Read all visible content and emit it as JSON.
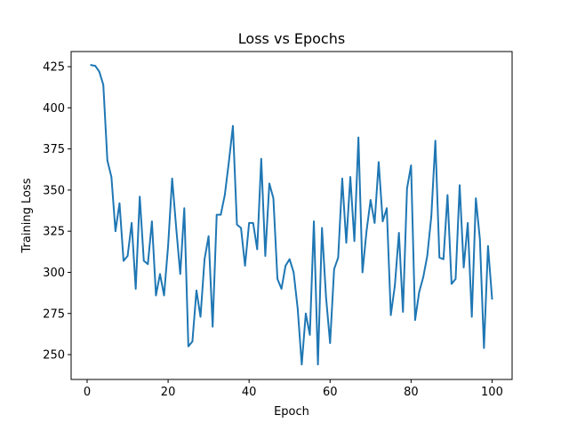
{
  "chart_data": {
    "type": "line",
    "title": "Loss vs Epochs",
    "xlabel": "Epoch",
    "ylabel": "Training Loss",
    "xlim": [
      -3.95,
      104.95
    ],
    "ylim": [
      234.9,
      434.2
    ],
    "xticks": [
      0,
      20,
      40,
      60,
      80,
      100
    ],
    "yticks": [
      250,
      275,
      300,
      325,
      350,
      375,
      400,
      425
    ],
    "grid": false,
    "series": [
      {
        "name": "Training Loss",
        "color": "#1f77b4",
        "x": [
          1,
          2,
          3,
          4,
          5,
          6,
          7,
          8,
          9,
          10,
          11,
          12,
          13,
          14,
          15,
          16,
          17,
          18,
          19,
          20,
          21,
          22,
          23,
          24,
          25,
          26,
          27,
          28,
          29,
          30,
          31,
          32,
          33,
          34,
          35,
          36,
          37,
          38,
          39,
          40,
          41,
          42,
          43,
          44,
          45,
          46,
          47,
          48,
          49,
          50,
          51,
          52,
          53,
          54,
          55,
          56,
          57,
          58,
          59,
          60,
          61,
          62,
          63,
          64,
          65,
          66,
          67,
          68,
          69,
          70,
          71,
          72,
          73,
          74,
          75,
          76,
          77,
          78,
          79,
          80,
          81,
          82,
          83,
          84,
          85,
          86,
          87,
          88,
          89,
          90,
          91,
          92,
          93,
          94,
          95,
          96,
          97,
          98,
          99,
          100
        ],
        "values": [
          426,
          425.5,
          422,
          414,
          368,
          358,
          325,
          342,
          307,
          310,
          330,
          290,
          346,
          307,
          305,
          331,
          286,
          299,
          286,
          316,
          357,
          327,
          299,
          339,
          255,
          258,
          289,
          273,
          308,
          322,
          267,
          335,
          335,
          347,
          367,
          389,
          329,
          327,
          304,
          330,
          330,
          314,
          369,
          310,
          354,
          345,
          296,
          290,
          304,
          308,
          300,
          278,
          244,
          275,
          262,
          331,
          244,
          327,
          285,
          257,
          302,
          309,
          357,
          318,
          358,
          319,
          382,
          300,
          325,
          344,
          330,
          367,
          331,
          339,
          274,
          292,
          324,
          276,
          351,
          365,
          271,
          288,
          297,
          310,
          334,
          380,
          309,
          308,
          347,
          293,
          296,
          353,
          303,
          330,
          273,
          345,
          320,
          254,
          316,
          284
        ]
      }
    ]
  }
}
